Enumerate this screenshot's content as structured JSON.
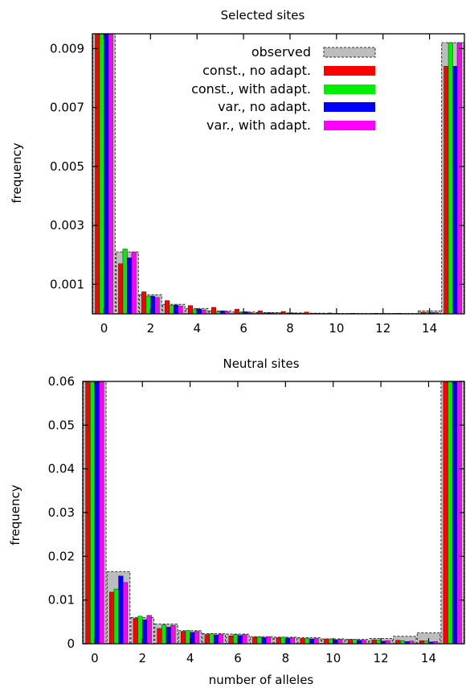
{
  "colors": {
    "observed": "#bdbdbd",
    "const_no_adapt": "#ff0000",
    "const_with_adapt": "#00ee00",
    "var_no_adapt": "#0000ff",
    "var_with_adapt": "#ff00ff"
  },
  "legend": {
    "placement": "top-right (top panel)",
    "entries": [
      "observed",
      "const., no adapt.",
      "const., with adapt.",
      "var., no adapt.",
      "var., with adapt."
    ]
  },
  "chart_data": [
    {
      "type": "bar",
      "title": "Selected sites",
      "xlabel": "",
      "ylabel": "frequency",
      "xlim": [
        -0.5,
        15.5
      ],
      "ylim": [
        0,
        0.0095
      ],
      "xticks": [
        "0",
        "2",
        "4",
        "6",
        "8",
        "10",
        "12",
        "14"
      ],
      "yticks": [
        "0.001",
        "0.003",
        "0.005",
        "0.007",
        "0.009"
      ],
      "categories": [
        0,
        1,
        2,
        3,
        4,
        5,
        6,
        7,
        8,
        9,
        10,
        11,
        12,
        13,
        14,
        15
      ],
      "series": [
        {
          "name": "observed",
          "values": [
            0.0095,
            0.0021,
            0.00065,
            0.00032,
            0.00018,
            0.0001,
            6e-05,
            4e-05,
            3e-05,
            2e-05,
            1e-05,
            1e-05,
            1e-05,
            1e-05,
            0.0001,
            0.0092
          ]
        },
        {
          "name": "const., no adapt.",
          "values": [
            0.0095,
            0.0017,
            0.00075,
            0.00045,
            0.00028,
            0.00022,
            0.00016,
            0.0001,
            8e-05,
            6e-05,
            3e-05,
            2e-05,
            2e-05,
            2e-05,
            5e-05,
            0.0084
          ]
        },
        {
          "name": "const., with adapt.",
          "values": [
            0.0095,
            0.0022,
            0.0006,
            0.00028,
            0.00014,
            8e-05,
            5e-05,
            3e-05,
            2e-05,
            1e-05,
            1e-05,
            1e-05,
            1e-05,
            1e-05,
            4e-05,
            0.0092
          ]
        },
        {
          "name": "var., no adapt.",
          "values": [
            0.0095,
            0.0019,
            0.0006,
            0.0003,
            0.00016,
            0.0001,
            7e-05,
            4e-05,
            3e-05,
            2e-05,
            1e-05,
            1e-05,
            1e-05,
            1e-05,
            4e-05,
            0.0084
          ]
        },
        {
          "name": "var., with adapt.",
          "values": [
            0.0095,
            0.0021,
            0.00055,
            0.00026,
            0.00013,
            7e-05,
            4e-05,
            3e-05,
            2e-05,
            1e-05,
            1e-05,
            1e-05,
            1e-05,
            1e-05,
            4e-05,
            0.0092
          ]
        }
      ]
    },
    {
      "type": "bar",
      "title": "Neutral sites",
      "xlabel": "number of alleles",
      "ylabel": "frequency",
      "xlim": [
        -0.5,
        15.5
      ],
      "ylim": [
        0,
        0.06
      ],
      "xticks": [
        "0",
        "2",
        "4",
        "6",
        "8",
        "10",
        "12",
        "14"
      ],
      "yticks": [
        "0",
        "0.01",
        "0.02",
        "0.03",
        "0.04",
        "0.05",
        "0.06"
      ],
      "categories": [
        0,
        1,
        2,
        3,
        4,
        5,
        6,
        7,
        8,
        9,
        10,
        11,
        12,
        13,
        14,
        15
      ],
      "series": [
        {
          "name": "observed",
          "values": [
            0.06,
            0.0165,
            0.006,
            0.0045,
            0.003,
            0.0023,
            0.0022,
            0.0016,
            0.0015,
            0.0014,
            0.0011,
            0.001,
            0.0012,
            0.0017,
            0.0025,
            0.06
          ]
        },
        {
          "name": "const., no adapt.",
          "values": [
            0.06,
            0.0118,
            0.0058,
            0.0035,
            0.0028,
            0.0021,
            0.0018,
            0.0015,
            0.0014,
            0.0012,
            0.0011,
            0.001,
            0.0009,
            0.0008,
            0.0007,
            0.06
          ]
        },
        {
          "name": "const., with adapt.",
          "values": [
            0.06,
            0.0125,
            0.0063,
            0.0043,
            0.003,
            0.0023,
            0.0021,
            0.0016,
            0.0015,
            0.0012,
            0.0011,
            0.001,
            0.0008,
            0.0007,
            0.0006,
            0.06
          ]
        },
        {
          "name": "var., no adapt.",
          "values": [
            0.06,
            0.0155,
            0.0055,
            0.0038,
            0.0026,
            0.002,
            0.0019,
            0.0014,
            0.0013,
            0.0011,
            0.0009,
            0.0008,
            0.0006,
            0.0005,
            0.0004,
            0.06
          ]
        },
        {
          "name": "var., with adapt.",
          "values": [
            0.06,
            0.014,
            0.0065,
            0.0042,
            0.0028,
            0.0022,
            0.0021,
            0.0016,
            0.0014,
            0.0012,
            0.001,
            0.0008,
            0.0007,
            0.0006,
            0.0005,
            0.06
          ]
        }
      ]
    }
  ]
}
